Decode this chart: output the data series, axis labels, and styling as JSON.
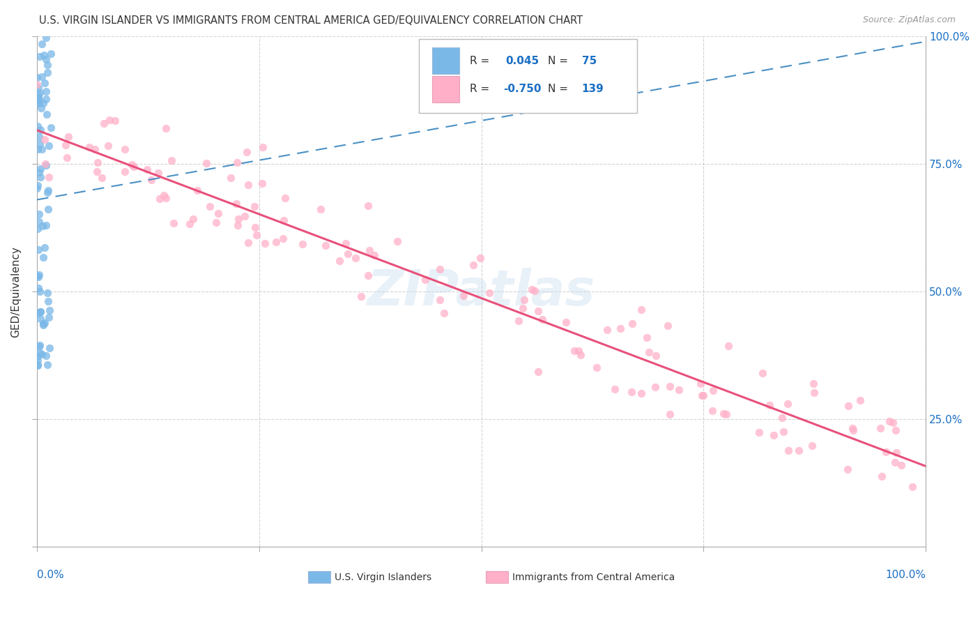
{
  "title": "U.S. VIRGIN ISLANDER VS IMMIGRANTS FROM CENTRAL AMERICA GED/EQUIVALENCY CORRELATION CHART",
  "source": "Source: ZipAtlas.com",
  "ylabel": "GED/Equivalency",
  "xlim": [
    0.0,
    1.0
  ],
  "ylim": [
    0.0,
    1.0
  ],
  "blue_color": "#7ab8e8",
  "pink_color": "#ffb0c8",
  "trend_blue_color": "#4a90c4",
  "trend_pink_color": "#e8507a",
  "watermark": "ZIPatlas",
  "blue_R": 0.045,
  "blue_N": 75,
  "pink_R": -0.75,
  "pink_N": 139,
  "legend_text_color": "#333333",
  "value_color": "#1a6fc4",
  "ytick_right_labels": [
    "",
    "25.0%",
    "50.0%",
    "75.0%",
    "100.0%"
  ],
  "ytick_values": [
    0.0,
    0.25,
    0.5,
    0.75,
    1.0
  ],
  "xtick_values": [
    0.0,
    0.25,
    0.5,
    0.75,
    1.0
  ]
}
